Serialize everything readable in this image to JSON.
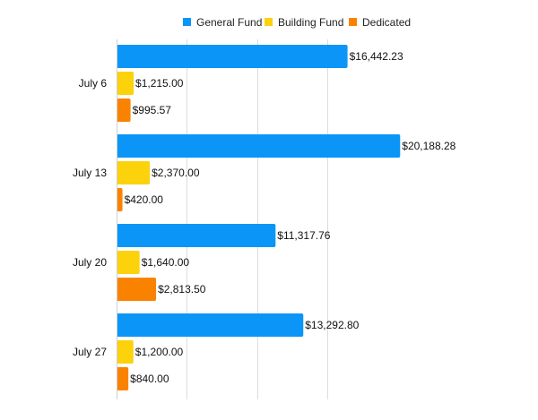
{
  "chart_data": {
    "type": "bar",
    "orientation": "horizontal",
    "categories": [
      "July 6",
      "July 13",
      "July 20",
      "July 27"
    ],
    "series": [
      {
        "name": "General Fund",
        "color": "#0b96f7",
        "values": [
          16442.23,
          20188.28,
          11317.76,
          13292.8
        ],
        "labels": [
          "$16,442.23",
          "$20,188.28",
          "$11,317.76",
          "$13,292.80"
        ]
      },
      {
        "name": "Building Fund",
        "color": "#fbd20c",
        "values": [
          1215.0,
          2370.0,
          1640.0,
          1200.0
        ],
        "labels": [
          "$1,215.00",
          "$2,370.00",
          "$1,640.00",
          "$1,200.00"
        ]
      },
      {
        "name": "Dedicated",
        "color": "#f98300",
        "values": [
          995.57,
          420.0,
          2813.5,
          840.0
        ],
        "labels": [
          "$995.57",
          "$420.00",
          "$2,813.50",
          "$840.00"
        ]
      }
    ],
    "xlim": [
      0,
      30000
    ],
    "grid": true,
    "legend": "top-center",
    "title": "",
    "xlabel": "",
    "ylabel": ""
  }
}
